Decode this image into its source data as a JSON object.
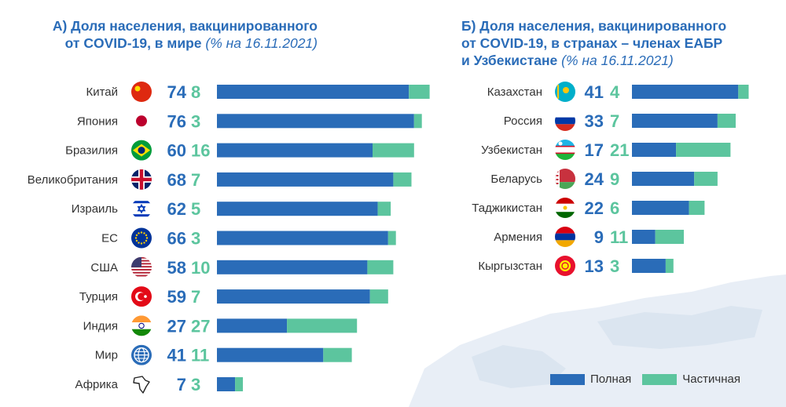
{
  "colors": {
    "full": "#2a6cb8",
    "partial": "#5cc59e",
    "title": "#2a6cb8",
    "label": "#333333",
    "map": "#e6edf5"
  },
  "panel_a": {
    "title_prefix": "А) ",
    "title_line1": "Доля населения, вакцинированного",
    "title_line2": "от COVID-19, в мире ",
    "title_note": "(% на 16.11.2021)"
  },
  "panel_b": {
    "title_prefix": "Б) ",
    "title_line1": "Доля населения, вакцинированного",
    "title_line2": "от COVID-19, в странах – членах ЕАБР",
    "title_line3": "и Узбекистане ",
    "title_note": "(% на 16.11.2021)"
  },
  "legend": {
    "full_label": "Полная",
    "partial_label": "Частичная"
  },
  "chart_data": [
    {
      "type": "bar",
      "orientation": "horizontal",
      "stacked": true,
      "title": "А) Доля населения, вакцинированного от COVID-19, в мире (% на 16.11.2021)",
      "categories": [
        "Китай",
        "Япония",
        "Бразилия",
        "Великобритания",
        "Израиль",
        "ЕС",
        "США",
        "Турция",
        "Индия",
        "Мир",
        "Африка"
      ],
      "icons": [
        "flag-china-icon",
        "flag-japan-icon",
        "flag-brazil-icon",
        "flag-uk-icon",
        "flag-israel-icon",
        "flag-eu-icon",
        "flag-usa-icon",
        "flag-turkey-icon",
        "flag-india-icon",
        "globe-icon",
        "africa-icon"
      ],
      "series": [
        {
          "name": "Полная",
          "values": [
            74,
            76,
            60,
            68,
            62,
            66,
            58,
            59,
            27,
            41,
            7
          ]
        },
        {
          "name": "Частичная",
          "values": [
            8,
            3,
            16,
            7,
            5,
            3,
            10,
            7,
            27,
            11,
            3
          ]
        }
      ],
      "xlim": [
        0,
        100
      ],
      "grid": false
    },
    {
      "type": "bar",
      "orientation": "horizontal",
      "stacked": true,
      "title": "Б) Доля населения, вакцинированного от COVID-19, в странах – членах ЕАБР и Узбекистане (% на 16.11.2021)",
      "categories": [
        "Казахстан",
        "Россия",
        "Узбекистан",
        "Беларусь",
        "Таджикистан",
        "Армения",
        "Кыргызстан"
      ],
      "icons": [
        "flag-kazakhstan-icon",
        "flag-russia-icon",
        "flag-uzbekistan-icon",
        "flag-belarus-icon",
        "flag-tajikistan-icon",
        "flag-armenia-icon",
        "flag-kyrgyzstan-icon"
      ],
      "series": [
        {
          "name": "Полная",
          "values": [
            41,
            33,
            17,
            24,
            22,
            9,
            13
          ]
        },
        {
          "name": "Частичная",
          "values": [
            4,
            7,
            21,
            9,
            6,
            11,
            3
          ]
        }
      ],
      "xlim": [
        0,
        100
      ],
      "grid": false,
      "legend_position": "bottom-right"
    }
  ]
}
